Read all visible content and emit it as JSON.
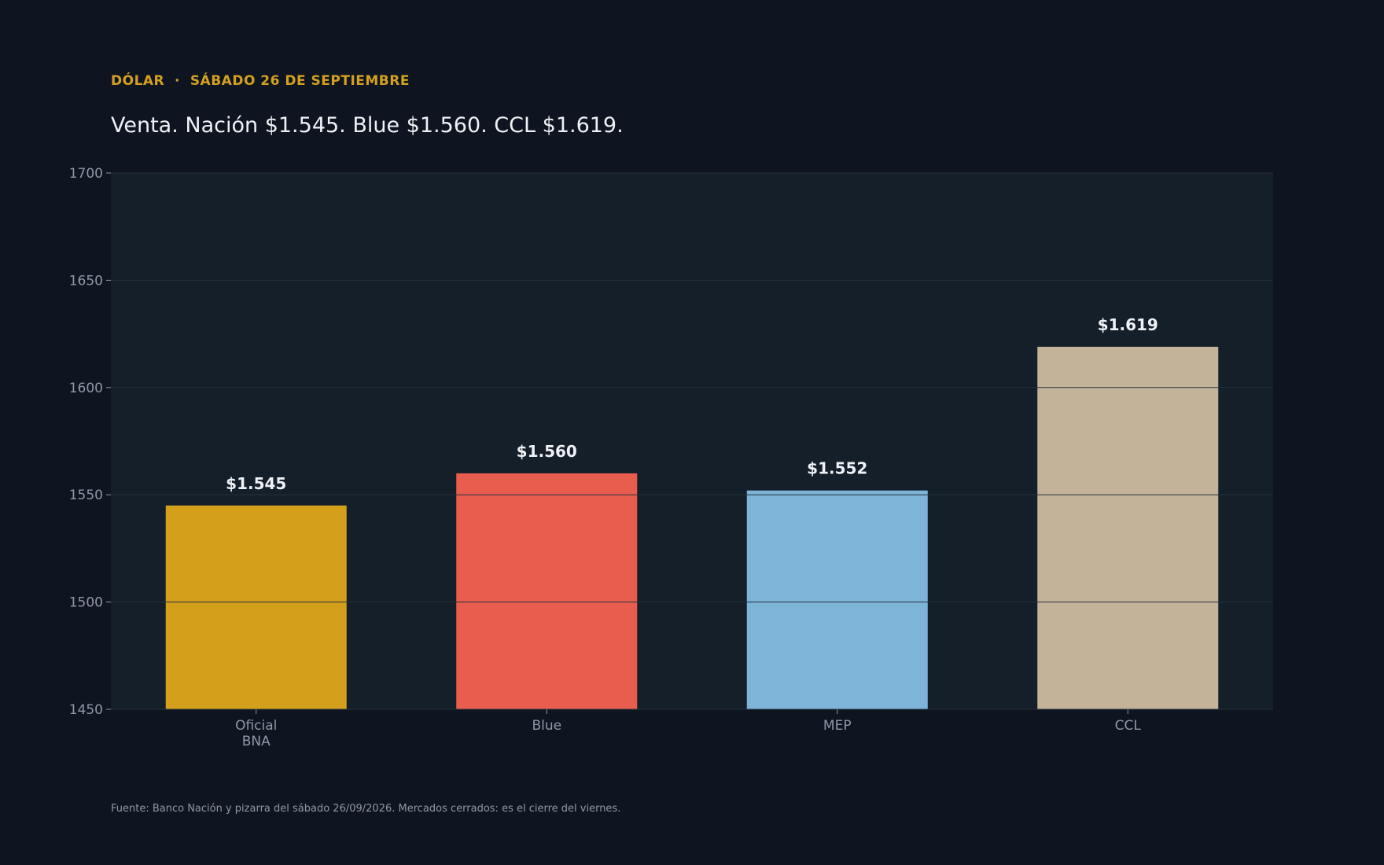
{
  "header": {
    "kicker_left": "DÓLAR",
    "kicker_sep": "·",
    "kicker_right": "SÁBADO 26 DE SEPTIEMBRE",
    "headline": "Venta. Nación $1.545. Blue $1.560. CCL $1.619."
  },
  "footer": {
    "source": "Fuente: Banco Nación y pizarra del sábado 26/09/2026. Mercados cerrados: es el cierre del viernes."
  },
  "colors": {
    "page_background": "#0e1520",
    "plot_background": "#151f29",
    "grid": "#25323d",
    "accent": "#d4a020"
  },
  "chart_data": {
    "type": "bar",
    "title": "",
    "xlabel": "",
    "ylabel": "",
    "categories": [
      [
        "Oficial",
        "BNA"
      ],
      [
        "Blue"
      ],
      [
        "MEP"
      ],
      [
        "CCL"
      ]
    ],
    "values": [
      1545,
      1560,
      1552,
      1619
    ],
    "value_labels": [
      "$1.545",
      "$1.560",
      "$1.552",
      "$1.619"
    ],
    "bar_colors": [
      "#d4a01b",
      "#e95d4e",
      "#7eb4d8",
      "#c3b399"
    ],
    "ylim": [
      1450,
      1700
    ],
    "yticks": [
      1450,
      1500,
      1550,
      1600,
      1650,
      1700
    ],
    "grid": true,
    "legend": "none"
  }
}
